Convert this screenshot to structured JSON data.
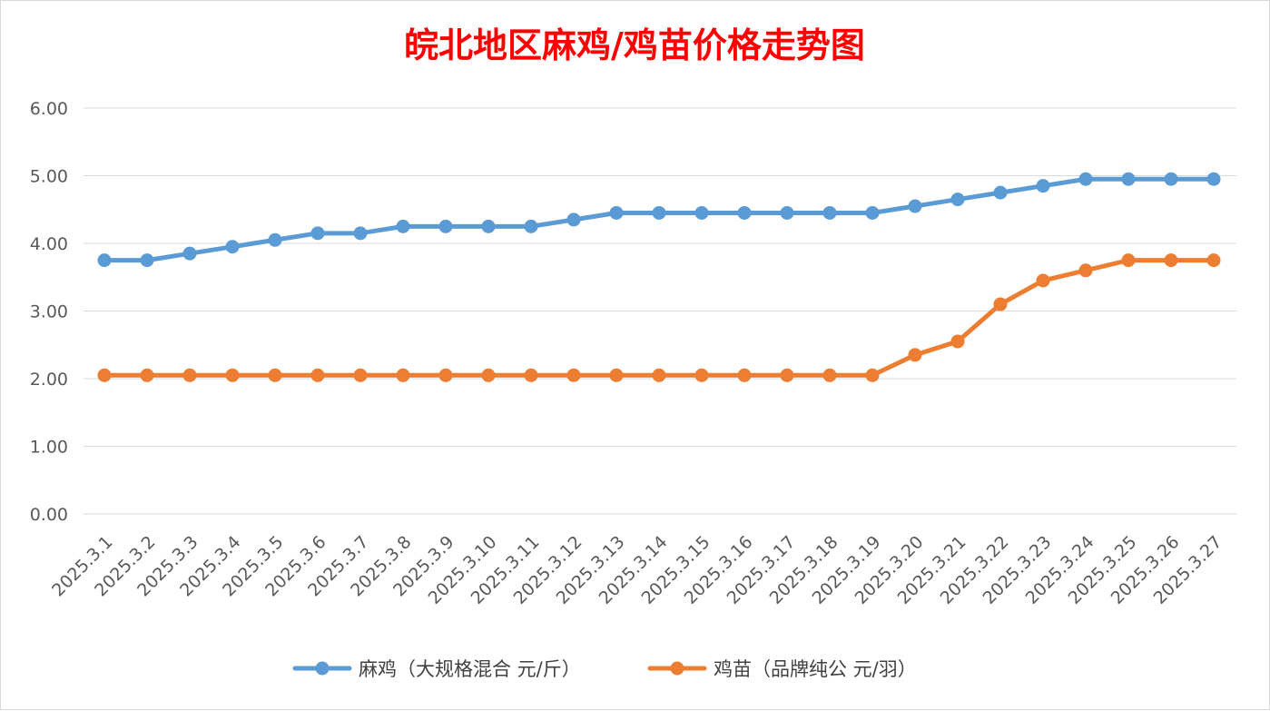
{
  "chart_data": {
    "type": "line",
    "title": "皖北地区麻鸡/鸡苗价格走势图",
    "title_color": "#ff0000",
    "xlabel": "",
    "ylabel": "",
    "ylim": [
      0,
      6
    ],
    "yticks": [
      "0.00",
      "1.00",
      "2.00",
      "3.00",
      "4.00",
      "5.00",
      "6.00"
    ],
    "grid": true,
    "legend_position": "bottom",
    "categories": [
      "2025.3.1",
      "2025.3.2",
      "2025.3.3",
      "2025.3.4",
      "2025.3.5",
      "2025.3.6",
      "2025.3.7",
      "2025.3.8",
      "2025.3.9",
      "2025.3.10",
      "2025.3.11",
      "2025.3.12",
      "2025.3.13",
      "2025.3.14",
      "2025.3.15",
      "2025.3.16",
      "2025.3.17",
      "2025.3.18",
      "2025.3.19",
      "2025.3.20",
      "2025.3.21",
      "2025.3.22",
      "2025.3.23",
      "2025.3.24",
      "2025.3.25",
      "2025.3.26",
      "2025.3.27"
    ],
    "series": [
      {
        "name": "麻鸡（大规格混合 元/斤）",
        "color": "#5b9bd5",
        "values": [
          3.75,
          3.75,
          3.85,
          3.95,
          4.05,
          4.15,
          4.15,
          4.25,
          4.25,
          4.25,
          4.25,
          4.35,
          4.45,
          4.45,
          4.45,
          4.45,
          4.45,
          4.45,
          4.45,
          4.55,
          4.65,
          4.75,
          4.85,
          4.95,
          4.95,
          4.95,
          4.95
        ]
      },
      {
        "name": "鸡苗（品牌纯公 元/羽）",
        "color": "#ed7d31",
        "values": [
          2.05,
          2.05,
          2.05,
          2.05,
          2.05,
          2.05,
          2.05,
          2.05,
          2.05,
          2.05,
          2.05,
          2.05,
          2.05,
          2.05,
          2.05,
          2.05,
          2.05,
          2.05,
          2.05,
          2.35,
          2.55,
          3.1,
          3.45,
          3.6,
          3.75,
          3.75,
          3.75
        ]
      }
    ]
  }
}
